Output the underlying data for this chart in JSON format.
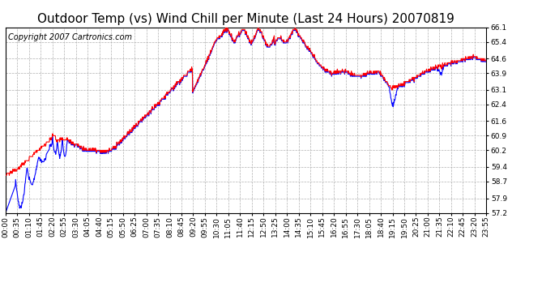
{
  "title": "Outdoor Temp (vs) Wind Chill per Minute (Last 24 Hours) 20070819",
  "copyright_text": "Copyright 2007 Cartronics.com",
  "background_color": "#ffffff",
  "plot_bg_color": "#ffffff",
  "grid_color": "#b0b0b0",
  "line_color_red": "#ff0000",
  "line_color_blue": "#0000ff",
  "ylim": [
    57.2,
    66.1
  ],
  "yticks": [
    57.2,
    57.9,
    58.7,
    59.4,
    60.2,
    60.9,
    61.6,
    62.4,
    63.1,
    63.9,
    64.6,
    65.4,
    66.1
  ],
  "xtick_labels": [
    "00:00",
    "00:35",
    "01:10",
    "01:45",
    "02:20",
    "02:55",
    "03:30",
    "04:05",
    "04:40",
    "05:15",
    "05:50",
    "06:25",
    "07:00",
    "07:35",
    "08:10",
    "08:45",
    "09:20",
    "09:55",
    "10:30",
    "11:05",
    "11:40",
    "12:15",
    "12:50",
    "13:25",
    "14:00",
    "14:35",
    "15:10",
    "15:45",
    "16:20",
    "16:55",
    "17:30",
    "18:05",
    "18:40",
    "19:15",
    "19:50",
    "20:25",
    "21:00",
    "21:35",
    "22:10",
    "22:45",
    "23:20",
    "23:55"
  ],
  "title_fontsize": 11,
  "copyright_fontsize": 7,
  "tick_fontsize": 6.5
}
